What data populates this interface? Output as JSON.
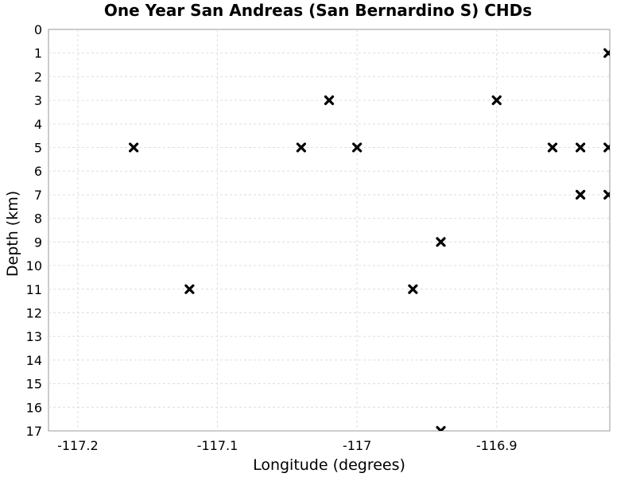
{
  "chart_data": {
    "type": "scatter",
    "title": "One Year San Andreas (San Bernardino S) CHDs",
    "xlabel": "Longitude (degrees)",
    "ylabel": "Depth (km)",
    "xlim": [
      -117.221,
      -116.819
    ],
    "ylim": [
      17,
      0
    ],
    "y_inverted": true,
    "grid": true,
    "marker": "x",
    "marker_color": "#000000",
    "x_ticks": [
      -117.2,
      -117.1,
      -117.0,
      -116.9
    ],
    "x_tick_labels": [
      "-117.2",
      "-117.1",
      "-117",
      "-116.9"
    ],
    "y_ticks": [
      0,
      1,
      2,
      3,
      4,
      5,
      6,
      7,
      8,
      9,
      10,
      11,
      12,
      13,
      14,
      15,
      16,
      17
    ],
    "y_tick_labels": [
      "0",
      "1",
      "2",
      "3",
      "4",
      "5",
      "6",
      "7",
      "8",
      "9",
      "10",
      "11",
      "12",
      "13",
      "14",
      "15",
      "16",
      "17"
    ],
    "points": [
      {
        "x": -117.16,
        "y": 5
      },
      {
        "x": -117.12,
        "y": 11
      },
      {
        "x": -117.04,
        "y": 5
      },
      {
        "x": -117.02,
        "y": 3
      },
      {
        "x": -117.0,
        "y": 5
      },
      {
        "x": -116.96,
        "y": 11
      },
      {
        "x": -116.94,
        "y": 9
      },
      {
        "x": -116.94,
        "y": 17
      },
      {
        "x": -116.9,
        "y": 3
      },
      {
        "x": -116.86,
        "y": 5
      },
      {
        "x": -116.84,
        "y": 5
      },
      {
        "x": -116.84,
        "y": 7
      },
      {
        "x": -116.82,
        "y": 1
      },
      {
        "x": -116.82,
        "y": 5
      },
      {
        "x": -116.82,
        "y": 7
      }
    ]
  }
}
